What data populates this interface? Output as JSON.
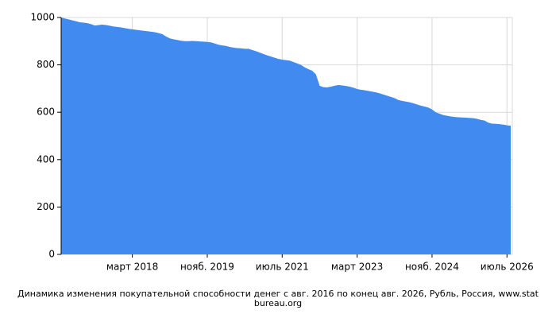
{
  "chart_data": {
    "type": "area",
    "title": "Динамика изменения покупательной способности денег с авг. 2016 по конец авг. 2026, Рубль, Россия, www.statbureau.org",
    "color": "#418bf0",
    "grid": true,
    "xlim": [
      "2016-08",
      "2026-08"
    ],
    "xticks": [
      {
        "value": "2018-03",
        "label": "март 2018"
      },
      {
        "value": "2019-11",
        "label": "нояб. 2019"
      },
      {
        "value": "2021-07",
        "label": "июль 2021"
      },
      {
        "value": "2023-03",
        "label": "март 2023"
      },
      {
        "value": "2024-11",
        "label": "нояб. 2024"
      },
      {
        "value": "2026-07",
        "label": "июль 2026"
      }
    ],
    "ylim": [
      0,
      1000
    ],
    "yticks": [
      0,
      200,
      400,
      600,
      800,
      1000
    ],
    "x": [
      "2016-08",
      "2016-09",
      "2016-10",
      "2016-11",
      "2016-12",
      "2017-01",
      "2017-02",
      "2017-03",
      "2017-04",
      "2017-05",
      "2017-06",
      "2017-07",
      "2017-08",
      "2017-09",
      "2017-10",
      "2017-11",
      "2017-12",
      "2018-01",
      "2018-02",
      "2018-03",
      "2018-04",
      "2018-05",
      "2018-06",
      "2018-07",
      "2018-08",
      "2018-09",
      "2018-10",
      "2018-11",
      "2018-12",
      "2019-01",
      "2019-02",
      "2019-03",
      "2019-04",
      "2019-05",
      "2019-06",
      "2019-07",
      "2019-08",
      "2019-09",
      "2019-10",
      "2019-11",
      "2019-12",
      "2020-01",
      "2020-02",
      "2020-03",
      "2020-04",
      "2020-05",
      "2020-06",
      "2020-07",
      "2020-08",
      "2020-09",
      "2020-10",
      "2020-11",
      "2020-12",
      "2021-01",
      "2021-02",
      "2021-03",
      "2021-04",
      "2021-05",
      "2021-06",
      "2021-07",
      "2021-08",
      "2021-09",
      "2021-10",
      "2021-11",
      "2021-12",
      "2022-01",
      "2022-02",
      "2022-03",
      "2022-04",
      "2022-05",
      "2022-06",
      "2022-07",
      "2022-08",
      "2022-09",
      "2022-10",
      "2022-11",
      "2022-12",
      "2023-01",
      "2023-02",
      "2023-03",
      "2023-04",
      "2023-05",
      "2023-06",
      "2023-07",
      "2023-08",
      "2023-09",
      "2023-10",
      "2023-11",
      "2023-12",
      "2024-01",
      "2024-02",
      "2024-03",
      "2024-04",
      "2024-05",
      "2024-06",
      "2024-07",
      "2024-08",
      "2024-09",
      "2024-10",
      "2024-11",
      "2024-12",
      "2025-01",
      "2025-02",
      "2025-03",
      "2025-04",
      "2025-05",
      "2025-06",
      "2025-07",
      "2025-08",
      "2025-09",
      "2025-10",
      "2025-11",
      "2025-12",
      "2026-01",
      "2026-02",
      "2026-03",
      "2026-04",
      "2026-05",
      "2026-06",
      "2026-07",
      "2026-08"
    ],
    "values": [
      1000,
      996,
      992,
      988,
      984,
      980,
      978,
      976,
      972,
      966,
      968,
      970,
      968,
      965,
      962,
      960,
      958,
      955,
      952,
      950,
      948,
      946,
      944,
      942,
      940,
      938,
      934,
      930,
      920,
      912,
      908,
      905,
      902,
      900,
      900,
      901,
      900,
      899,
      898,
      897,
      895,
      890,
      885,
      882,
      880,
      876,
      873,
      871,
      870,
      868,
      868,
      863,
      858,
      852,
      846,
      840,
      835,
      830,
      825,
      822,
      820,
      818,
      812,
      806,
      800,
      790,
      782,
      775,
      760,
      712,
      706,
      705,
      708,
      712,
      715,
      713,
      711,
      708,
      704,
      698,
      695,
      693,
      690,
      687,
      684,
      680,
      675,
      670,
      665,
      660,
      652,
      648,
      645,
      642,
      638,
      633,
      628,
      624,
      620,
      612,
      600,
      594,
      588,
      585,
      582,
      580,
      579,
      578,
      577,
      576,
      575,
      572,
      568,
      565,
      556,
      552,
      551,
      550,
      548,
      545,
      543
    ]
  }
}
